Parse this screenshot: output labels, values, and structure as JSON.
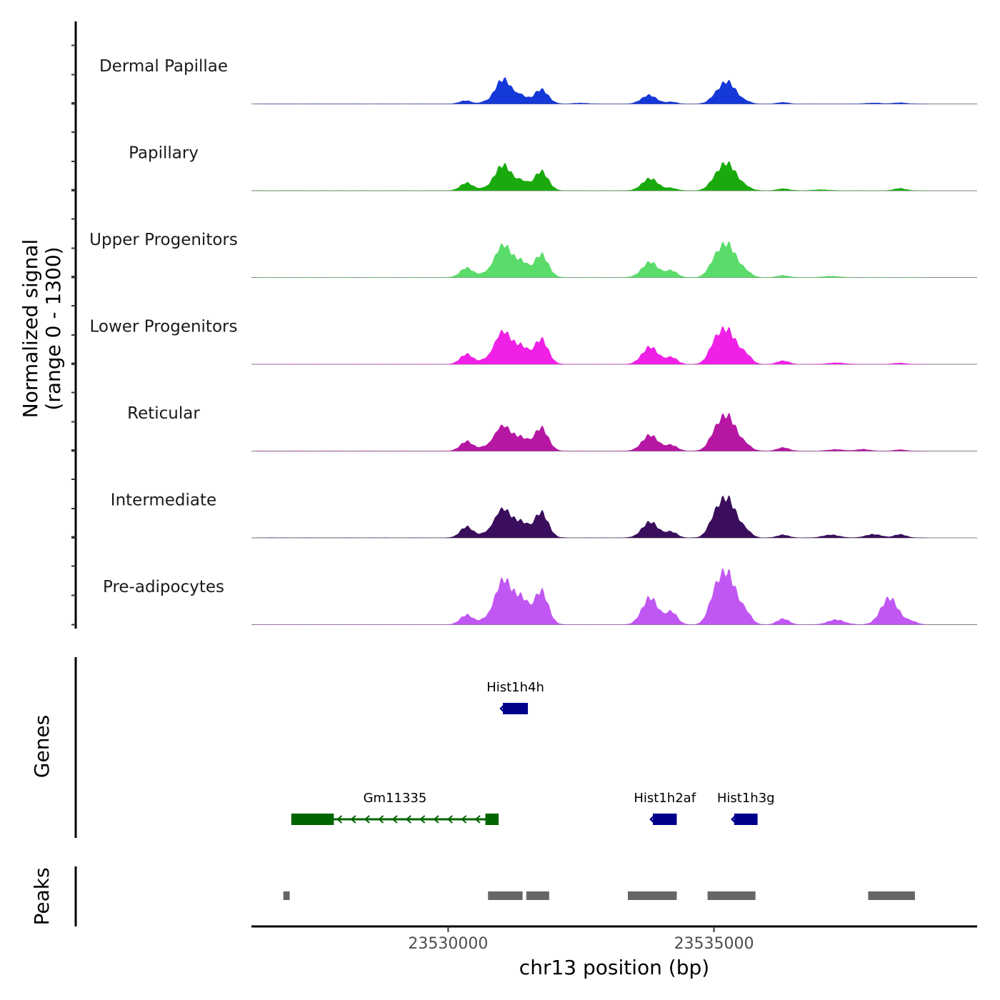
{
  "chart_data": {
    "type": "area",
    "title": "",
    "ylabel_line1": "Normalized signal",
    "ylabel_line2": "(range 0 - 1300)",
    "y_range": [
      0,
      1300
    ],
    "xlabel": "chr13 position (bp)",
    "x_range": [
      23526300,
      23539950
    ],
    "x_ticks": [
      {
        "value": 23530000,
        "label": "23530000"
      },
      {
        "value": 23535000,
        "label": "23535000"
      }
    ],
    "signal_tracks": [
      {
        "name": "Dermal Papillae",
        "color": "#1538D8",
        "peaks": [
          [
            23530330,
            65,
            110
          ],
          [
            23530650,
            25,
            70
          ],
          [
            23530930,
            60,
            135
          ],
          [
            23531050,
            470,
            150
          ],
          [
            23531380,
            150,
            110
          ],
          [
            23531750,
            300,
            130
          ],
          [
            23532500,
            18,
            120
          ],
          [
            23533780,
            180,
            140
          ],
          [
            23534200,
            38,
            100
          ],
          [
            23535000,
            70,
            110
          ],
          [
            23535250,
            460,
            160
          ],
          [
            23535600,
            40,
            100
          ],
          [
            23536300,
            30,
            100
          ],
          [
            23538000,
            18,
            150
          ],
          [
            23538500,
            25,
            110
          ]
        ]
      },
      {
        "name": "Papillary",
        "color": "#1AAA0E",
        "peaks": [
          [
            23530350,
            160,
            120
          ],
          [
            23530650,
            25,
            80
          ],
          [
            23530930,
            70,
            140
          ],
          [
            23531050,
            480,
            160
          ],
          [
            23531400,
            170,
            110
          ],
          [
            23531750,
            400,
            130
          ],
          [
            23533800,
            250,
            150
          ],
          [
            23534200,
            50,
            100
          ],
          [
            23535000,
            110,
            120
          ],
          [
            23535250,
            560,
            170
          ],
          [
            23535600,
            60,
            110
          ],
          [
            23536300,
            40,
            110
          ],
          [
            23537000,
            18,
            150
          ],
          [
            23538500,
            45,
            110
          ]
        ]
      },
      {
        "name": "Upper Progenitors",
        "color": "#5BDC6A",
        "peaks": [
          [
            23530350,
            200,
            120
          ],
          [
            23530650,
            45,
            90
          ],
          [
            23530950,
            100,
            140
          ],
          [
            23531060,
            600,
            170
          ],
          [
            23531400,
            260,
            110
          ],
          [
            23531750,
            480,
            130
          ],
          [
            23533800,
            320,
            150
          ],
          [
            23534200,
            140,
            110
          ],
          [
            23535000,
            200,
            120
          ],
          [
            23535250,
            680,
            170
          ],
          [
            23535600,
            100,
            110
          ],
          [
            23536300,
            40,
            110
          ],
          [
            23537200,
            25,
            150
          ]
        ]
      },
      {
        "name": "Lower Progenitors",
        "color": "#F020E6",
        "peaks": [
          [
            23530350,
            210,
            120
          ],
          [
            23530650,
            50,
            90
          ],
          [
            23530950,
            130,
            140
          ],
          [
            23531060,
            580,
            170
          ],
          [
            23531400,
            300,
            120
          ],
          [
            23531750,
            520,
            130
          ],
          [
            23533800,
            360,
            150
          ],
          [
            23534200,
            140,
            110
          ],
          [
            23535000,
            270,
            120
          ],
          [
            23535250,
            700,
            170
          ],
          [
            23535600,
            170,
            110
          ],
          [
            23536300,
            70,
            110
          ],
          [
            23537300,
            30,
            150
          ],
          [
            23538500,
            25,
            110
          ]
        ]
      },
      {
        "name": "Reticular",
        "color": "#B517A3",
        "peaks": [
          [
            23530350,
            200,
            120
          ],
          [
            23530650,
            50,
            90
          ],
          [
            23530950,
            120,
            140
          ],
          [
            23531060,
            430,
            170
          ],
          [
            23531400,
            220,
            120
          ],
          [
            23531750,
            480,
            130
          ],
          [
            23533800,
            330,
            150
          ],
          [
            23534200,
            120,
            110
          ],
          [
            23535000,
            200,
            120
          ],
          [
            23535250,
            720,
            170
          ],
          [
            23535600,
            100,
            110
          ],
          [
            23536300,
            70,
            110
          ],
          [
            23537300,
            30,
            150
          ],
          [
            23537800,
            35,
            120
          ],
          [
            23538500,
            25,
            110
          ]
        ]
      },
      {
        "name": "Intermediate",
        "color": "#3A0E5C",
        "peaks": [
          [
            23530350,
            230,
            120
          ],
          [
            23530650,
            50,
            90
          ],
          [
            23530950,
            130,
            140
          ],
          [
            23531060,
            500,
            170
          ],
          [
            23531400,
            260,
            120
          ],
          [
            23531750,
            530,
            130
          ],
          [
            23533800,
            330,
            150
          ],
          [
            23534200,
            120,
            110
          ],
          [
            23535000,
            250,
            120
          ],
          [
            23535250,
            800,
            170
          ],
          [
            23535600,
            120,
            110
          ],
          [
            23536300,
            60,
            110
          ],
          [
            23537200,
            60,
            150
          ],
          [
            23538000,
            70,
            150
          ],
          [
            23538500,
            70,
            110
          ]
        ]
      },
      {
        "name": "Pre-adipocytes",
        "color": "#C157F2",
        "peaks": [
          [
            23530350,
            200,
            120
          ],
          [
            23530650,
            60,
            90
          ],
          [
            23530950,
            100,
            140
          ],
          [
            23531060,
            860,
            170
          ],
          [
            23531400,
            450,
            120
          ],
          [
            23531750,
            700,
            130
          ],
          [
            23533800,
            560,
            150
          ],
          [
            23534200,
            260,
            110
          ],
          [
            23535000,
            380,
            120
          ],
          [
            23535250,
            1050,
            170
          ],
          [
            23535600,
            210,
            110
          ],
          [
            23536300,
            120,
            110
          ],
          [
            23537300,
            100,
            150
          ],
          [
            23538300,
            550,
            160
          ],
          [
            23538700,
            70,
            110
          ]
        ]
      }
    ],
    "genes": [
      {
        "name": "Hist1h4h",
        "row": 1,
        "strand": "-",
        "color": "#00008B",
        "start": 23531030,
        "end": 23531500,
        "exons": [
          [
            23531030,
            23531500
          ]
        ]
      },
      {
        "name": "Gm11335",
        "row": 2,
        "strand": "-",
        "color": "#006400",
        "start": 23527050,
        "end": 23530950,
        "exons": [
          [
            23527050,
            23527850
          ],
          [
            23530700,
            23530950
          ]
        ]
      },
      {
        "name": "Hist1h2af",
        "row": 2,
        "strand": "-",
        "color": "#00008B",
        "start": 23533850,
        "end": 23534300,
        "exons": [
          [
            23533850,
            23534300
          ]
        ]
      },
      {
        "name": "Hist1h3g",
        "row": 2,
        "strand": "-",
        "color": "#00008B",
        "start": 23535380,
        "end": 23535820,
        "exons": [
          [
            23535380,
            23535820
          ]
        ]
      }
    ],
    "genes_label": "Genes",
    "peaks_label": "Peaks",
    "peak_color": "#666666",
    "peaks": [
      [
        23526900,
        23527020
      ],
      [
        23530750,
        23531400
      ],
      [
        23531470,
        23531900
      ],
      [
        23533380,
        23534300
      ],
      [
        23534880,
        23535780
      ],
      [
        23537900,
        23538780
      ]
    ]
  }
}
